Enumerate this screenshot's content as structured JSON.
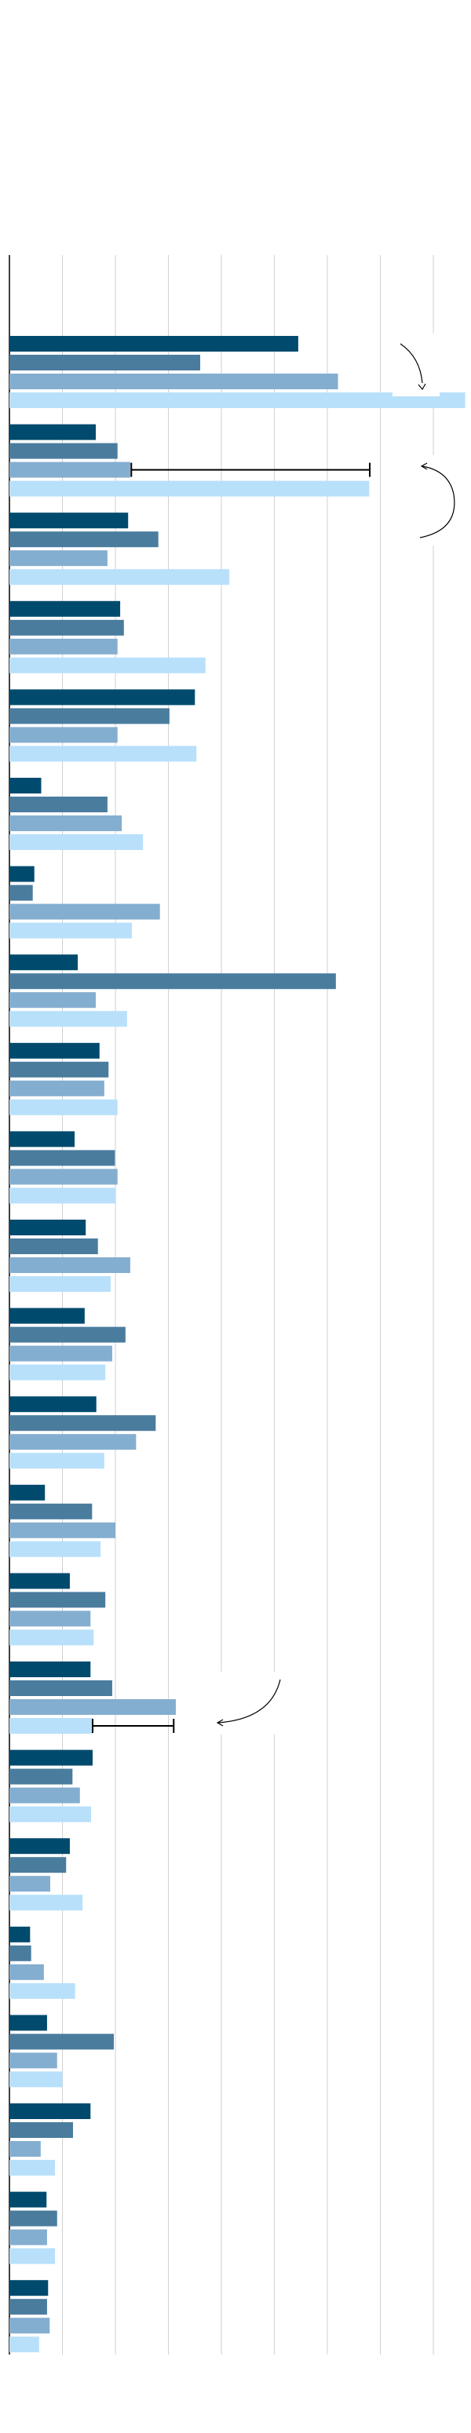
{
  "chart_data": {
    "type": "barh",
    "xlim": [
      0,
      8.71
    ],
    "xticks": [
      0,
      1,
      2,
      3,
      4,
      5,
      6,
      7,
      8
    ],
    "grid": true,
    "series": [
      {
        "color": "#004a6e",
        "values": [
          5.45,
          1.63,
          2.24,
          2.09,
          3.5,
          0.6,
          0.47,
          1.29,
          1.7,
          1.23,
          1.44,
          1.42,
          1.64,
          0.67,
          1.14,
          1.53,
          1.57,
          1.14,
          0.39,
          0.71,
          1.53,
          0.7,
          0.73
        ]
      },
      {
        "color": "#4a7c9e",
        "values": [
          3.6,
          2.04,
          2.81,
          2.16,
          3.02,
          1.85,
          0.44,
          6.16,
          1.87,
          1.99,
          1.67,
          2.19,
          2.76,
          1.56,
          1.81,
          1.94,
          1.19,
          1.07,
          0.41,
          1.97,
          1.2,
          0.9,
          0.71
        ]
      },
      {
        "color": "#84aed0",
        "values": [
          6.2,
          2.28,
          1.85,
          2.04,
          2.04,
          2.12,
          2.84,
          1.63,
          1.79,
          2.04,
          2.28,
          1.94,
          2.39,
          2.0,
          1.53,
          3.14,
          1.33,
          0.77,
          0.65,
          0.9,
          0.59,
          0.71,
          0.76
        ]
      },
      {
        "color": "#b8e0fb",
        "values": [
          8.6,
          6.79,
          4.15,
          3.7,
          3.53,
          2.52,
          2.31,
          2.22,
          2.04,
          2.01,
          1.91,
          1.81,
          1.79,
          1.72,
          1.59,
          1.57,
          1.54,
          1.38,
          1.24,
          1.0,
          0.86,
          0.86,
          0.56
        ]
      }
    ],
    "brackets": [
      [
        2.3,
        6.8
      ],
      [
        1.57,
        3.1
      ]
    ]
  }
}
